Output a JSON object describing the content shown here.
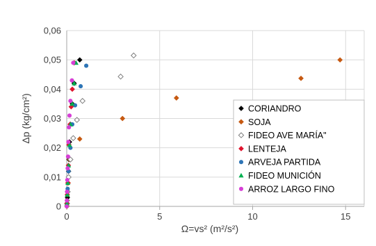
{
  "chart_data": {
    "type": "scatter",
    "xlabel": "Ω=vs² (m²/s²)",
    "ylabel": "Δp (kg/cm²)",
    "xlim": [
      0,
      16
    ],
    "ylim": [
      0,
      0.06
    ],
    "x_ticks": [
      0,
      5,
      10,
      15
    ],
    "y_ticks": [
      0,
      0.01,
      0.02,
      0.03,
      0.04,
      0.05,
      0.06
    ],
    "x_tick_labels": [
      "0",
      "5",
      "10",
      "15"
    ],
    "y_tick_labels": [
      "0",
      "0,01",
      "0,02",
      "0,03",
      "0,04",
      "0,05",
      "0,06"
    ],
    "grid": true,
    "legend_position": "bottom-right",
    "series": [
      {
        "name": "CORIANDRO",
        "color": "#000000",
        "marker": "diamond",
        "points": [
          [
            0.02,
            0.001
          ],
          [
            0.04,
            0.003
          ],
          [
            0.06,
            0.005
          ],
          [
            0.08,
            0.008
          ],
          [
            0.1,
            0.012
          ],
          [
            0.12,
            0.016
          ],
          [
            0.15,
            0.022
          ],
          [
            0.2,
            0.028
          ],
          [
            0.3,
            0.035
          ],
          [
            0.4,
            0.042
          ],
          [
            0.7,
            0.05
          ]
        ]
      },
      {
        "name": "SOJA",
        "color": "#c65911",
        "marker": "diamond",
        "points": [
          [
            0.01,
            0.0
          ],
          [
            0.03,
            0.002
          ],
          [
            0.08,
            0.008
          ],
          [
            0.15,
            0.016
          ],
          [
            0.7,
            0.023
          ],
          [
            3.0,
            0.03
          ],
          [
            5.9,
            0.037
          ],
          [
            12.6,
            0.0437
          ],
          [
            14.7,
            0.05
          ]
        ]
      },
      {
        "name": "FIDEO AVE MARÍA\"",
        "color": "#7f7f7f",
        "marker": "diamond-open",
        "points": [
          [
            0.02,
            0.001
          ],
          [
            0.05,
            0.005
          ],
          [
            0.1,
            0.01
          ],
          [
            0.2,
            0.016
          ],
          [
            0.35,
            0.0233
          ],
          [
            0.55,
            0.0295
          ],
          [
            0.85,
            0.036
          ],
          [
            2.9,
            0.0443
          ],
          [
            3.6,
            0.0515
          ]
        ]
      },
      {
        "name": "LENTEJA",
        "color": "#e0142e",
        "marker": "diamond",
        "points": [
          [
            0.01,
            0.001
          ],
          [
            0.03,
            0.004
          ],
          [
            0.06,
            0.008
          ],
          [
            0.09,
            0.014
          ],
          [
            0.12,
            0.021
          ],
          [
            0.18,
            0.028
          ],
          [
            0.24,
            0.034
          ],
          [
            0.3,
            0.04
          ],
          [
            0.4,
            0.049
          ]
        ]
      },
      {
        "name": "ARVEJA PARTIDA",
        "color": "#2e75b6",
        "marker": "circle",
        "points": [
          [
            0.02,
            0.002
          ],
          [
            0.05,
            0.006
          ],
          [
            0.1,
            0.012
          ],
          [
            0.2,
            0.02
          ],
          [
            0.3,
            0.028
          ],
          [
            0.45,
            0.0345
          ],
          [
            0.75,
            0.041
          ],
          [
            1.05,
            0.048
          ]
        ]
      },
      {
        "name": "FIDEO MUNICIÓN",
        "color": "#00b050",
        "marker": "triangle",
        "points": [
          [
            0.01,
            0.001
          ],
          [
            0.03,
            0.004
          ],
          [
            0.06,
            0.008
          ],
          [
            0.1,
            0.014
          ],
          [
            0.15,
            0.021
          ],
          [
            0.2,
            0.028
          ],
          [
            0.3,
            0.035
          ],
          [
            0.4,
            0.042
          ],
          [
            0.5,
            0.049
          ]
        ]
      },
      {
        "name": "ARROZ LARGO FINO",
        "color": "#d63fd6",
        "marker": "circle",
        "points": [
          [
            0.0,
            0.0
          ],
          [
            0.01,
            0.002
          ],
          [
            0.02,
            0.005
          ],
          [
            0.03,
            0.009
          ],
          [
            0.05,
            0.013
          ],
          [
            0.07,
            0.017
          ],
          [
            0.09,
            0.022
          ],
          [
            0.12,
            0.027
          ],
          [
            0.15,
            0.031
          ],
          [
            0.2,
            0.036
          ],
          [
            0.28,
            0.043
          ],
          [
            0.35,
            0.049
          ]
        ]
      }
    ]
  }
}
